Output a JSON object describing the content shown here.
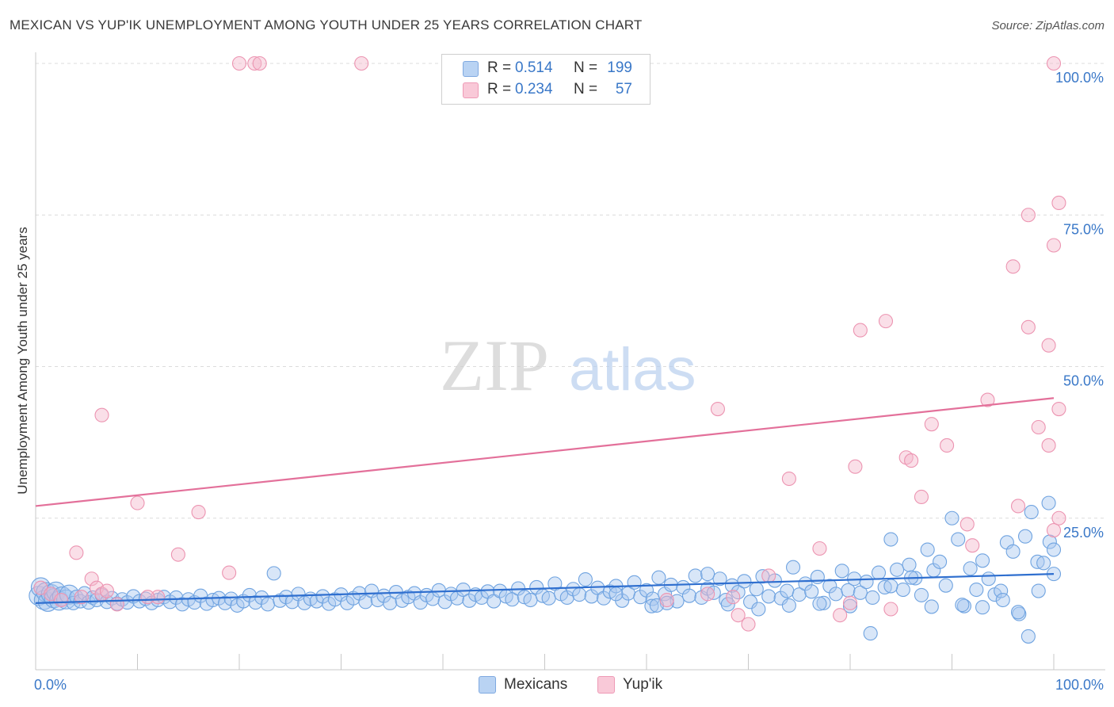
{
  "header": {
    "title": "MEXICAN VS YUP'IK UNEMPLOYMENT AMONG YOUTH UNDER 25 YEARS CORRELATION CHART",
    "source": "Source: ZipAtlas.com"
  },
  "watermark": {
    "part1": "ZIP",
    "part2": "atlas"
  },
  "legend": {
    "rows": [
      {
        "r_label": "R =",
        "r_value": "0.514",
        "n_label": "N =",
        "n_value": "199",
        "color": "#a9c8ef"
      },
      {
        "r_label": "R =",
        "r_value": "0.234",
        "n_label": "N =",
        "n_value": "57",
        "color": "#f5b8cb"
      }
    ]
  },
  "bottom_legend": {
    "items": [
      {
        "label": "Mexicans",
        "color": "#a9c8ef"
      },
      {
        "label": "Yup'ik",
        "color": "#f5b8cb"
      }
    ]
  },
  "chart_data": {
    "type": "scatter",
    "title": "MEXICAN VS YUP'IK UNEMPLOYMENT AMONG YOUTH UNDER 25 YEARS CORRELATION CHART",
    "xlabel": "",
    "ylabel": "Unemployment Among Youth under 25 years",
    "xlim": [
      0,
      100
    ],
    "ylim": [
      0,
      100
    ],
    "x_tick_labels": [
      "0.0%",
      "100.0%"
    ],
    "y_tick_labels": [
      "25.0%",
      "50.0%",
      "75.0%",
      "100.0%"
    ],
    "y_ticks": [
      25,
      50,
      75,
      100
    ],
    "grid": true,
    "legend_position": "top-center",
    "colors": {
      "mexicans": "#6fa3e0",
      "yupik": "#f29ab5",
      "blue_line": "#2f6fcf",
      "pink_line": "#e3709a",
      "tick_label": "#3a78c8"
    },
    "series": [
      {
        "name": "Mexicans",
        "R": 0.514,
        "N": 199,
        "trend": {
          "x": [
            0,
            100
          ],
          "y": [
            11.0,
            15.8
          ]
        },
        "points": [
          [
            0.3,
            12.2
          ],
          [
            0.5,
            13.6
          ],
          [
            0.8,
            11.5
          ],
          [
            1.0,
            12.8
          ],
          [
            1.2,
            11.2
          ],
          [
            1.5,
            12.5
          ],
          [
            1.8,
            11.8
          ],
          [
            2.0,
            12.9
          ],
          [
            2.3,
            11.4
          ],
          [
            2.6,
            12.1
          ],
          [
            3.0,
            11.6
          ],
          [
            3.3,
            12.4
          ],
          [
            3.7,
            11.0
          ],
          [
            4.0,
            12.0
          ],
          [
            4.4,
            11.3
          ],
          [
            4.8,
            12.6
          ],
          [
            5.2,
            11.1
          ],
          [
            5.6,
            11.9
          ],
          [
            6.0,
            11.5
          ],
          [
            6.5,
            12.3
          ],
          [
            7.0,
            11.2
          ],
          [
            7.5,
            11.8
          ],
          [
            8.0,
            10.9
          ],
          [
            8.5,
            11.6
          ],
          [
            9.0,
            11.1
          ],
          [
            9.6,
            12.1
          ],
          [
            10.2,
            11.3
          ],
          [
            10.8,
            11.7
          ],
          [
            11.4,
            11.0
          ],
          [
            12.0,
            11.5
          ],
          [
            12.6,
            12.0
          ],
          [
            13.2,
            11.2
          ],
          [
            13.8,
            11.9
          ],
          [
            14.4,
            10.8
          ],
          [
            15.0,
            11.6
          ],
          [
            15.6,
            11.1
          ],
          [
            16.2,
            12.2
          ],
          [
            16.8,
            10.9
          ],
          [
            17.4,
            11.5
          ],
          [
            18.0,
            11.8
          ],
          [
            18.6,
            11.0
          ],
          [
            19.2,
            11.7
          ],
          [
            19.8,
            10.6
          ],
          [
            20.4,
            11.3
          ],
          [
            21.0,
            12.3
          ],
          [
            21.6,
            11.1
          ],
          [
            22.2,
            11.9
          ],
          [
            22.8,
            10.8
          ],
          [
            23.4,
            15.9
          ],
          [
            24.0,
            11.4
          ],
          [
            24.6,
            12.0
          ],
          [
            25.2,
            11.2
          ],
          [
            25.8,
            12.5
          ],
          [
            26.4,
            11.0
          ],
          [
            27.0,
            11.7
          ],
          [
            27.6,
            11.3
          ],
          [
            28.2,
            12.1
          ],
          [
            28.8,
            10.9
          ],
          [
            29.4,
            11.6
          ],
          [
            30.0,
            12.4
          ],
          [
            30.6,
            11.0
          ],
          [
            31.2,
            11.8
          ],
          [
            31.8,
            12.6
          ],
          [
            32.4,
            11.2
          ],
          [
            33.0,
            13.0
          ],
          [
            33.6,
            11.5
          ],
          [
            34.2,
            12.2
          ],
          [
            34.8,
            11.0
          ],
          [
            35.4,
            12.8
          ],
          [
            36.0,
            11.4
          ],
          [
            36.6,
            12.0
          ],
          [
            37.2,
            12.6
          ],
          [
            37.8,
            11.1
          ],
          [
            38.4,
            12.3
          ],
          [
            39.0,
            11.7
          ],
          [
            39.6,
            13.1
          ],
          [
            40.2,
            11.2
          ],
          [
            40.8,
            12.5
          ],
          [
            41.4,
            11.8
          ],
          [
            42.0,
            13.2
          ],
          [
            42.6,
            11.4
          ],
          [
            43.2,
            12.4
          ],
          [
            43.8,
            11.9
          ],
          [
            44.4,
            12.9
          ],
          [
            45.0,
            11.3
          ],
          [
            45.6,
            13.0
          ],
          [
            46.2,
            12.1
          ],
          [
            46.8,
            11.6
          ],
          [
            47.4,
            13.4
          ],
          [
            48.0,
            12.0
          ],
          [
            48.6,
            11.5
          ],
          [
            49.2,
            13.6
          ],
          [
            49.8,
            12.2
          ],
          [
            50.4,
            11.8
          ],
          [
            51.0,
            14.2
          ],
          [
            51.6,
            12.5
          ],
          [
            52.2,
            11.9
          ],
          [
            52.8,
            13.3
          ],
          [
            53.4,
            12.4
          ],
          [
            54.0,
            14.9
          ],
          [
            54.6,
            12.1
          ],
          [
            55.2,
            13.5
          ],
          [
            55.8,
            11.8
          ],
          [
            56.4,
            12.9
          ],
          [
            57.0,
            13.8
          ],
          [
            57.6,
            11.4
          ],
          [
            58.2,
            12.6
          ],
          [
            58.8,
            14.4
          ],
          [
            59.4,
            12.0
          ],
          [
            60.0,
            13.1
          ],
          [
            60.6,
            11.7
          ],
          [
            61.2,
            15.2
          ],
          [
            61.8,
            12.5
          ],
          [
            62.4,
            14.0
          ],
          [
            63.0,
            11.3
          ],
          [
            63.6,
            13.6
          ],
          [
            64.2,
            12.2
          ],
          [
            64.8,
            15.5
          ],
          [
            65.4,
            11.9
          ],
          [
            66.0,
            13.4
          ],
          [
            66.6,
            12.7
          ],
          [
            67.2,
            15.0
          ],
          [
            67.8,
            11.5
          ],
          [
            68.4,
            13.9
          ],
          [
            69.0,
            12.8
          ],
          [
            69.6,
            14.6
          ],
          [
            70.2,
            11.2
          ],
          [
            70.8,
            13.3
          ],
          [
            71.4,
            15.4
          ],
          [
            72.0,
            12.1
          ],
          [
            72.6,
            14.7
          ],
          [
            73.2,
            11.8
          ],
          [
            73.8,
            13.0
          ],
          [
            74.4,
            16.9
          ],
          [
            75.0,
            12.4
          ],
          [
            75.6,
            14.2
          ],
          [
            76.2,
            12.9
          ],
          [
            76.8,
            15.3
          ],
          [
            77.4,
            11.0
          ],
          [
            78.0,
            13.8
          ],
          [
            78.6,
            12.5
          ],
          [
            79.2,
            16.3
          ],
          [
            79.8,
            13.1
          ],
          [
            80.4,
            15.0
          ],
          [
            81.0,
            12.7
          ],
          [
            81.6,
            14.5
          ],
          [
            82.2,
            11.9
          ],
          [
            82.8,
            16.0
          ],
          [
            83.4,
            13.6
          ],
          [
            84.0,
            21.5
          ],
          [
            84.6,
            16.5
          ],
          [
            85.2,
            13.2
          ],
          [
            85.8,
            17.3
          ],
          [
            86.4,
            15.1
          ],
          [
            87.0,
            12.3
          ],
          [
            87.6,
            19.8
          ],
          [
            88.2,
            16.4
          ],
          [
            88.8,
            17.8
          ],
          [
            89.4,
            13.9
          ],
          [
            90.0,
            25.0
          ],
          [
            90.6,
            21.5
          ],
          [
            91.2,
            10.5
          ],
          [
            91.8,
            16.7
          ],
          [
            92.4,
            13.2
          ],
          [
            93.0,
            18.0
          ],
          [
            93.6,
            15.0
          ],
          [
            94.2,
            12.4
          ],
          [
            94.8,
            13.0
          ],
          [
            95.4,
            21.0
          ],
          [
            96.0,
            19.5
          ],
          [
            96.6,
            9.2
          ],
          [
            97.2,
            22.0
          ],
          [
            97.8,
            26.0
          ],
          [
            98.4,
            17.8
          ],
          [
            99.0,
            17.6
          ],
          [
            99.6,
            21.1
          ],
          [
            60.5,
            10.5
          ],
          [
            62.0,
            11.0
          ],
          [
            68.0,
            10.8
          ],
          [
            71.0,
            10.0
          ],
          [
            74.0,
            10.6
          ],
          [
            77.0,
            10.9
          ],
          [
            80.0,
            10.5
          ],
          [
            82.0,
            6.0
          ],
          [
            88.0,
            10.4
          ],
          [
            91.0,
            10.7
          ],
          [
            93.0,
            10.3
          ],
          [
            95.0,
            11.5
          ],
          [
            96.5,
            9.5
          ],
          [
            97.5,
            5.5
          ],
          [
            98.5,
            13.0
          ],
          [
            99.5,
            27.5
          ],
          [
            100.0,
            19.8
          ],
          [
            100.0,
            15.8
          ],
          [
            86.0,
            15.2
          ],
          [
            84.0,
            13.8
          ],
          [
            66.0,
            15.8
          ],
          [
            61.0,
            10.6
          ],
          [
            57.0,
            12.5
          ]
        ]
      },
      {
        "name": "Yup'ik",
        "R": 0.234,
        "N": 57,
        "trend": {
          "x": [
            0,
            100
          ],
          "y": [
            27.0,
            44.8
          ]
        },
        "points": [
          [
            0.5,
            13.5
          ],
          [
            1.5,
            12.5
          ],
          [
            2.5,
            11.5
          ],
          [
            4.0,
            19.3
          ],
          [
            4.5,
            12.0
          ],
          [
            5.5,
            15.0
          ],
          [
            6.0,
            13.5
          ],
          [
            6.5,
            12.5
          ],
          [
            7.0,
            13.0
          ],
          [
            8.0,
            10.8
          ],
          [
            6.5,
            42.0
          ],
          [
            10.0,
            27.5
          ],
          [
            12.0,
            12.0
          ],
          [
            14.0,
            19.0
          ],
          [
            16.0,
            26.0
          ],
          [
            19.0,
            16.0
          ],
          [
            20.0,
            100.0
          ],
          [
            21.5,
            100.0
          ],
          [
            22.0,
            100.0
          ],
          [
            32.0,
            100.0
          ],
          [
            62.0,
            11.5
          ],
          [
            66.0,
            12.5
          ],
          [
            67.0,
            43.0
          ],
          [
            68.5,
            12.0
          ],
          [
            69.0,
            9.0
          ],
          [
            70.0,
            7.5
          ],
          [
            72.0,
            15.5
          ],
          [
            74.0,
            31.5
          ],
          [
            77.0,
            20.0
          ],
          [
            79.0,
            9.0
          ],
          [
            80.0,
            11.0
          ],
          [
            80.5,
            33.5
          ],
          [
            81.0,
            56.0
          ],
          [
            83.5,
            57.5
          ],
          [
            84.0,
            10.0
          ],
          [
            85.5,
            35.0
          ],
          [
            86.0,
            34.5
          ],
          [
            87.0,
            28.5
          ],
          [
            88.0,
            40.5
          ],
          [
            89.5,
            37.0
          ],
          [
            91.5,
            24.0
          ],
          [
            92.0,
            20.5
          ],
          [
            93.5,
            44.5
          ],
          [
            96.0,
            66.5
          ],
          [
            96.5,
            27.0
          ],
          [
            97.5,
            56.5
          ],
          [
            97.5,
            75.0
          ],
          [
            98.5,
            40.0
          ],
          [
            99.5,
            53.5
          ],
          [
            99.5,
            37.0
          ],
          [
            100.0,
            23.0
          ],
          [
            100.0,
            100.0
          ],
          [
            100.5,
            25.0
          ],
          [
            100.5,
            77.0
          ],
          [
            100.5,
            43.0
          ],
          [
            100.0,
            70.0
          ],
          [
            11.0,
            12.0
          ]
        ]
      }
    ]
  }
}
